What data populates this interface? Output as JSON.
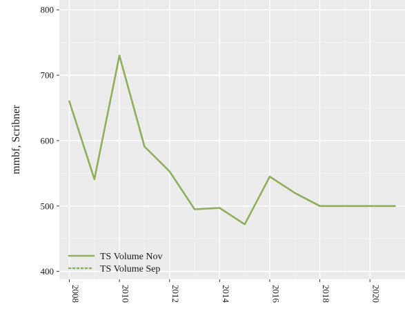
{
  "chart_data": {
    "type": "line",
    "title": "",
    "xlabel": "",
    "ylabel": "mmbf, Scribner",
    "xlim": [
      2007.6,
      2021.4
    ],
    "ylim": [
      388,
      815
    ],
    "grid": true,
    "x_ticks": [
      "2008",
      "2010",
      "2012",
      "2014",
      "2016",
      "2018",
      "2020"
    ],
    "y_ticks": [
      "400",
      "500",
      "600",
      "700",
      "800"
    ],
    "legend_position": "bottom-left",
    "series": [
      {
        "name": "TS Volume Nov",
        "style": "solid",
        "color": "#8fae5c",
        "x": [
          2008,
          2009,
          2010,
          2011,
          2012,
          2013,
          2014,
          2015,
          2016,
          2017,
          2018,
          2019,
          2020,
          2021
        ],
        "y": [
          660,
          541,
          730,
          591,
          553,
          495,
          497,
          472,
          545,
          520,
          500,
          500,
          500,
          500
        ]
      },
      {
        "name": "TS Volume Sep",
        "style": "dotted",
        "color": "#8fae5c",
        "x": [],
        "y": []
      }
    ]
  },
  "colors": {
    "panel_background": "#ebebeb",
    "grid_major": "#ffffff",
    "grid_minor": "#f4f4f4",
    "series": "#8fae5c"
  }
}
